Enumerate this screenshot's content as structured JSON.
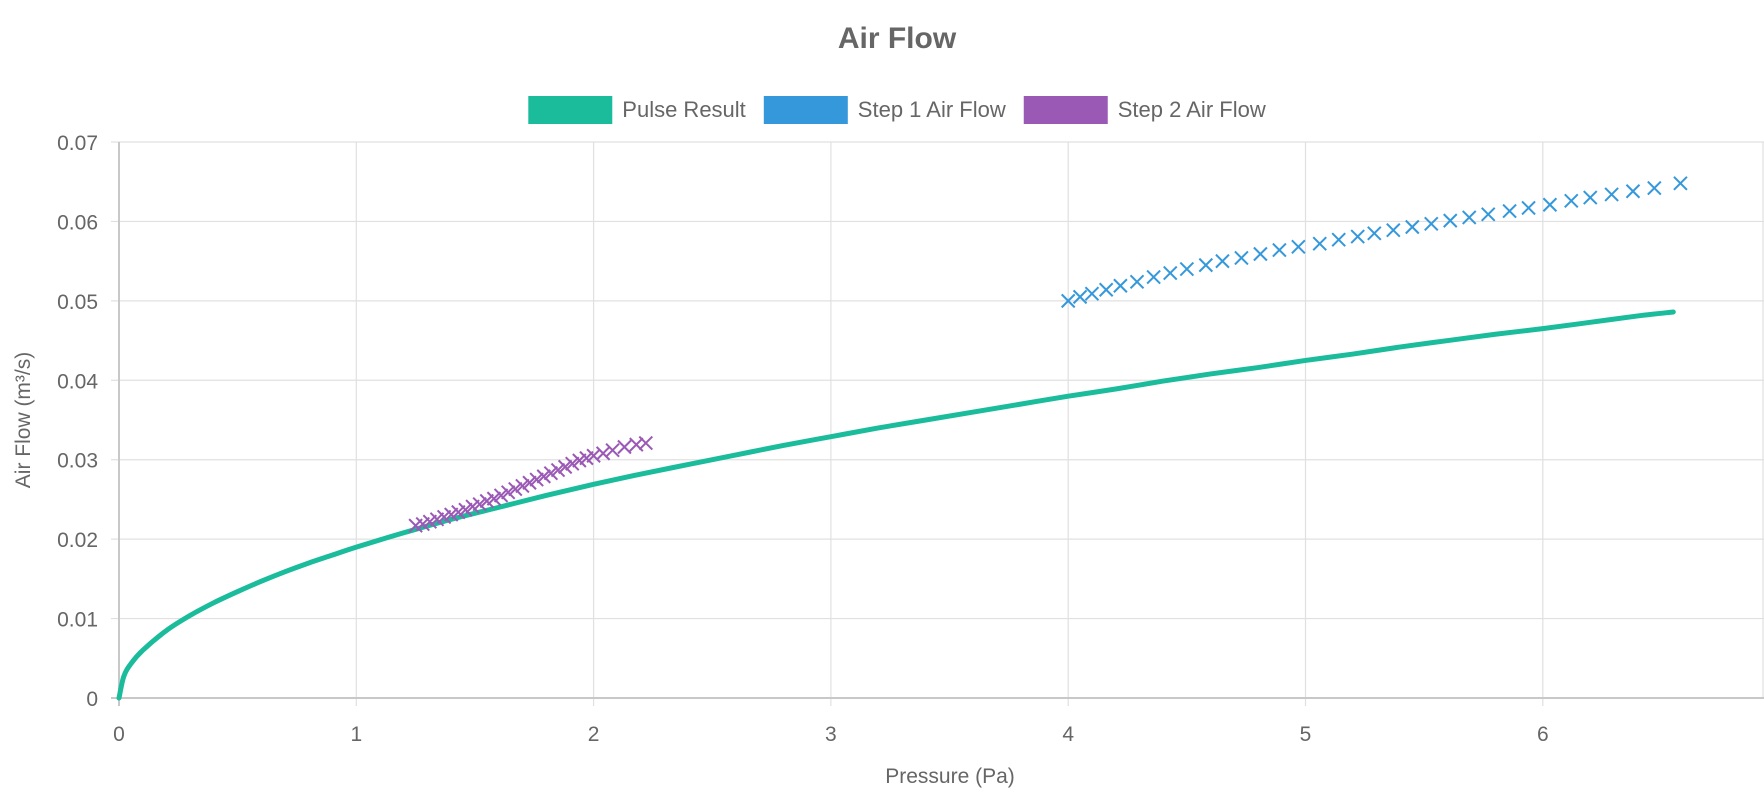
{
  "chart_data": {
    "type": "scatter",
    "title": "Air Flow",
    "xlabel": "Pressure (Pa)",
    "ylabel": "Air Flow (m³/s)",
    "xlim": [
      0,
      7
    ],
    "ylim": [
      0,
      0.07
    ],
    "x_ticks": [
      "0",
      "1",
      "2",
      "3",
      "4",
      "5",
      "6"
    ],
    "y_ticks": [
      "0",
      "0.01",
      "0.02",
      "0.03",
      "0.04",
      "0.05",
      "0.06",
      "0.07"
    ],
    "grid": true,
    "legend_position": "top-center",
    "series": [
      {
        "name": "Pulse Result",
        "kind": "line",
        "color": "#1abc9c",
        "points": [
          [
            0,
            0
          ],
          [
            0.02,
            0.0027
          ],
          [
            0.05,
            0.0043
          ],
          [
            0.1,
            0.006
          ],
          [
            0.2,
            0.0085
          ],
          [
            0.3,
            0.0104
          ],
          [
            0.4,
            0.012
          ],
          [
            0.5,
            0.0134
          ],
          [
            0.6,
            0.0147
          ],
          [
            0.7,
            0.0159
          ],
          [
            0.8,
            0.017
          ],
          [
            0.9,
            0.018
          ],
          [
            1.0,
            0.019
          ],
          [
            1.2,
            0.0208
          ],
          [
            1.4,
            0.0225
          ],
          [
            1.6,
            0.024
          ],
          [
            1.8,
            0.0255
          ],
          [
            2.0,
            0.0269
          ],
          [
            2.2,
            0.0282
          ],
          [
            2.4,
            0.0294
          ],
          [
            2.6,
            0.0306
          ],
          [
            2.8,
            0.0318
          ],
          [
            3.0,
            0.0329
          ],
          [
            3.2,
            0.034
          ],
          [
            3.4,
            0.035
          ],
          [
            3.6,
            0.036
          ],
          [
            3.8,
            0.037
          ],
          [
            4.0,
            0.038
          ],
          [
            4.2,
            0.0389
          ],
          [
            4.4,
            0.0399
          ],
          [
            4.6,
            0.0408
          ],
          [
            4.8,
            0.0416
          ],
          [
            5.0,
            0.0425
          ],
          [
            5.2,
            0.0433
          ],
          [
            5.4,
            0.0442
          ],
          [
            5.6,
            0.045
          ],
          [
            5.8,
            0.0458
          ],
          [
            6.0,
            0.0465
          ],
          [
            6.2,
            0.0473
          ],
          [
            6.4,
            0.0481
          ],
          [
            6.55,
            0.0486
          ]
        ]
      },
      {
        "name": "Step 1 Air Flow",
        "kind": "scatter",
        "marker": "x",
        "color": "#3498db",
        "points": [
          [
            4.0,
            0.05
          ],
          [
            4.05,
            0.0505
          ],
          [
            4.1,
            0.0509
          ],
          [
            4.16,
            0.0514
          ],
          [
            4.22,
            0.0519
          ],
          [
            4.29,
            0.0524
          ],
          [
            4.36,
            0.053
          ],
          [
            4.43,
            0.0535
          ],
          [
            4.5,
            0.054
          ],
          [
            4.58,
            0.0545
          ],
          [
            4.65,
            0.055
          ],
          [
            4.73,
            0.0554
          ],
          [
            4.81,
            0.0559
          ],
          [
            4.89,
            0.0564
          ],
          [
            4.97,
            0.0568
          ],
          [
            5.06,
            0.0572
          ],
          [
            5.14,
            0.0577
          ],
          [
            5.22,
            0.0581
          ],
          [
            5.29,
            0.0585
          ],
          [
            5.37,
            0.0589
          ],
          [
            5.45,
            0.0593
          ],
          [
            5.53,
            0.0597
          ],
          [
            5.61,
            0.0601
          ],
          [
            5.69,
            0.0605
          ],
          [
            5.77,
            0.0609
          ],
          [
            5.86,
            0.0613
          ],
          [
            5.94,
            0.0617
          ],
          [
            6.03,
            0.0621
          ],
          [
            6.12,
            0.0626
          ],
          [
            6.2,
            0.063
          ],
          [
            6.29,
            0.0634
          ],
          [
            6.38,
            0.0638
          ],
          [
            6.47,
            0.0642
          ],
          [
            6.58,
            0.0648
          ]
        ]
      },
      {
        "name": "Step 2 Air Flow",
        "kind": "scatter",
        "marker": "x",
        "color": "#9b59b6",
        "points": [
          [
            1.25,
            0.0217
          ],
          [
            1.28,
            0.0219
          ],
          [
            1.31,
            0.0222
          ],
          [
            1.34,
            0.0225
          ],
          [
            1.37,
            0.0228
          ],
          [
            1.4,
            0.0231
          ],
          [
            1.43,
            0.0234
          ],
          [
            1.46,
            0.0237
          ],
          [
            1.49,
            0.0241
          ],
          [
            1.52,
            0.0244
          ],
          [
            1.55,
            0.0248
          ],
          [
            1.58,
            0.0251
          ],
          [
            1.61,
            0.0255
          ],
          [
            1.64,
            0.0259
          ],
          [
            1.67,
            0.0263
          ],
          [
            1.7,
            0.0267
          ],
          [
            1.73,
            0.0271
          ],
          [
            1.76,
            0.0275
          ],
          [
            1.79,
            0.0279
          ],
          [
            1.82,
            0.0283
          ],
          [
            1.85,
            0.0287
          ],
          [
            1.88,
            0.0291
          ],
          [
            1.91,
            0.0295
          ],
          [
            1.94,
            0.0299
          ],
          [
            1.97,
            0.0302
          ],
          [
            2.0,
            0.0305
          ],
          [
            2.04,
            0.0308
          ],
          [
            2.08,
            0.0312
          ],
          [
            2.13,
            0.0316
          ],
          [
            2.18,
            0.0319
          ],
          [
            2.22,
            0.0321
          ]
        ]
      }
    ]
  }
}
